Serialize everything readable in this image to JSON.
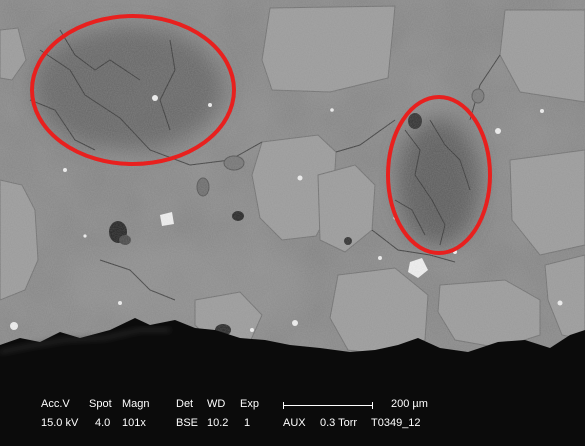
{
  "annotation_color": "#e8201e",
  "background_color": "#0b0b0b",
  "info_bar": {
    "acc_v_label": "Acc.V",
    "acc_v_value": "15.0 kV",
    "spot_label": "Spot",
    "spot_value": "4.0",
    "magn_label": "Magn",
    "magn_value": "101x",
    "det_label": "Det",
    "det_value": "BSE",
    "wd_label": "WD",
    "wd_value": "10.2",
    "exp_label": "Exp",
    "exp_value": "1",
    "scale_value": "200 µm",
    "aux_label": "AUX",
    "pressure_value": "0.3 Torr",
    "sample_id": "T0349_12"
  }
}
